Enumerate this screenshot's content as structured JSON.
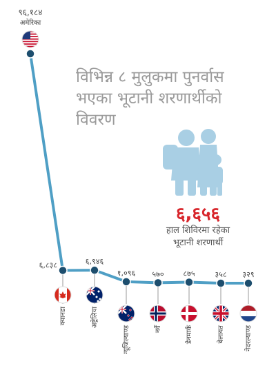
{
  "chart_data": {
    "type": "line",
    "title_lines": [
      "विभिन्न ८ मुलुकमा पुनर्वास",
      "भएका भूटानी शरणार्थीको",
      "विवरण"
    ],
    "categories": [
      "अमेरिका",
      "क्यानडा",
      "अष्ट्रेलिया",
      "न्यूजिल्याण्ड",
      "नर्वे",
      "डेनमार्क",
      "बेलायत",
      "नेदरल्याण्ड"
    ],
    "values": [
      96184,
      6838,
      6946,
      1096,
      570,
      875,
      358,
      329
    ],
    "value_labels": [
      "९६,१८४",
      "६,८३८",
      "६,९४६",
      "१,०९६",
      "५७०",
      "८७५",
      "३५८",
      "३२९"
    ],
    "flags": [
      "us-flag",
      "canada-flag",
      "australia-flag",
      "new-zealand-flag",
      "norway-flag",
      "denmark-flag",
      "uk-flag",
      "netherlands-flag"
    ],
    "line_color": "#4f9fc5",
    "marker_color": "#1d4e6e"
  },
  "camp_stat": {
    "value": "६,६५६",
    "label_lines": [
      "हाल शिविरमा रहेका",
      "भूटानी शरणार्थी"
    ],
    "icon": "refugee-family-icon",
    "icon_color": "#a9cfe4",
    "value_color": "#d8262c"
  }
}
